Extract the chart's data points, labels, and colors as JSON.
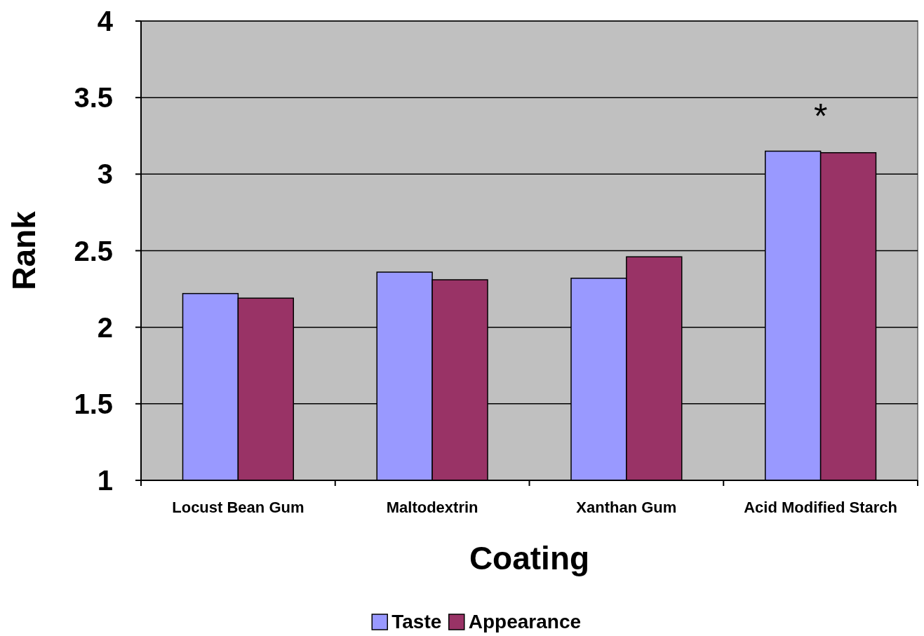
{
  "chart_data": {
    "type": "bar",
    "xlabel": "Coating",
    "ylabel": "Rank",
    "categories": [
      "Locust Bean Gum",
      "Maltodextrin",
      "Xanthan Gum",
      "Acid Modified Starch"
    ],
    "series": [
      {
        "name": "Taste",
        "color": "#9999ff",
        "values": [
          2.22,
          2.36,
          2.32,
          3.15
        ]
      },
      {
        "name": "Appearance",
        "color": "#993366",
        "values": [
          2.19,
          2.31,
          2.46,
          3.14
        ]
      }
    ],
    "ylim": [
      1,
      4
    ],
    "yticks": [
      1,
      1.5,
      2,
      2.5,
      3,
      3.5,
      4
    ],
    "grid": "y",
    "legend": "bottom",
    "annotations": [
      "*"
    ]
  }
}
